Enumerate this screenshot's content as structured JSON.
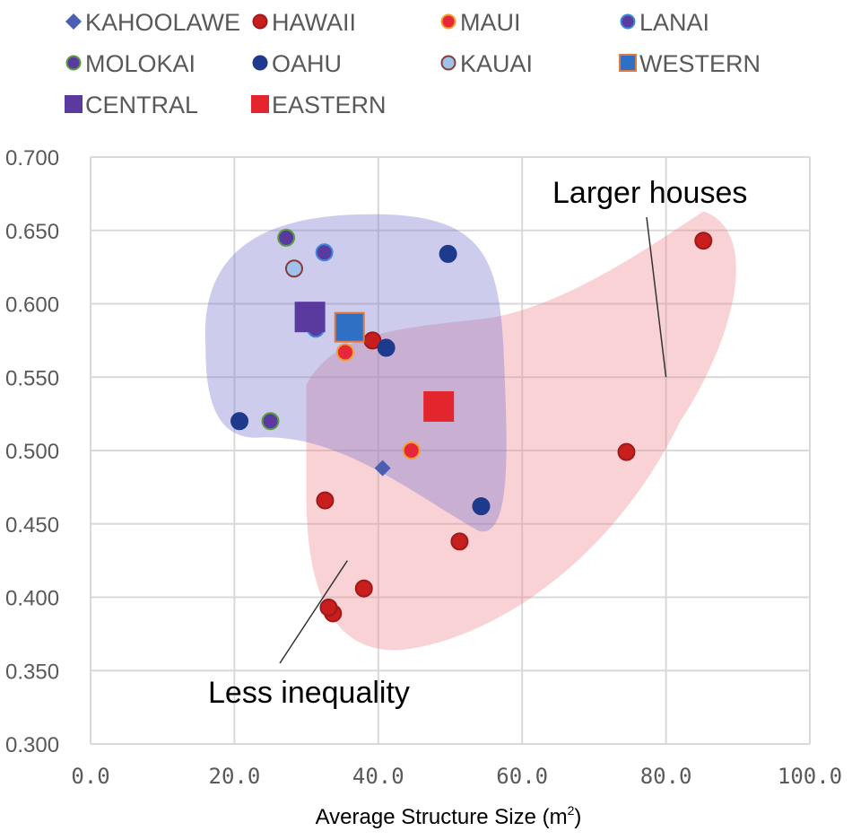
{
  "chart_data": {
    "type": "scatter",
    "title": "",
    "xlabel": "Average Structure Size (m²)",
    "xlabel_base": "Average Structure Size (m",
    "xlabel_sup": "2",
    "xlabel_end": ")",
    "ylabel": "",
    "xlim": [
      0,
      100
    ],
    "ylim": [
      0.3,
      0.7
    ],
    "x_ticks": [
      "0.0",
      "20.0",
      "40.0",
      "60.0",
      "80.0",
      "100.0"
    ],
    "x_tick_values": [
      0,
      20,
      40,
      60,
      80,
      100
    ],
    "y_ticks": [
      "0.700",
      "0.650",
      "0.600",
      "0.550",
      "0.500",
      "0.450",
      "0.400",
      "0.350",
      "0.300"
    ],
    "y_tick_values": [
      0.7,
      0.65,
      0.6,
      0.55,
      0.5,
      0.45,
      0.4,
      0.35,
      0.3
    ],
    "grid": true,
    "legend_position": "top",
    "series": [
      {
        "name": "KAHOOLAWE",
        "marker": "diamond",
        "fill": "#4a5fb4",
        "stroke": "#4a5fb4",
        "size": "small",
        "points": [
          [
            40.6,
            0.488
          ]
        ]
      },
      {
        "name": "HAWAII",
        "marker": "circle",
        "fill": "#c81e1e",
        "stroke": "#9e1a1a",
        "size": "small",
        "points": [
          [
            85.2,
            0.643
          ],
          [
            74.5,
            0.499
          ],
          [
            51.3,
            0.438
          ],
          [
            32.6,
            0.466
          ],
          [
            38.0,
            0.406
          ],
          [
            33.7,
            0.389
          ],
          [
            33.1,
            0.393
          ],
          [
            39.2,
            0.575
          ]
        ]
      },
      {
        "name": "MAUI",
        "marker": "circle",
        "fill": "#e8263a",
        "stroke": "#f0a030",
        "size": "small",
        "points": [
          [
            44.6,
            0.5
          ],
          [
            35.4,
            0.567
          ]
        ]
      },
      {
        "name": "LANAI",
        "marker": "circle",
        "fill": "#5a3a9e",
        "stroke": "#3f8ad8",
        "size": "small",
        "points": [
          [
            32.5,
            0.635
          ],
          [
            31.3,
            0.583
          ]
        ]
      },
      {
        "name": "MOLOKAI",
        "marker": "circle",
        "fill": "#5a3a9e",
        "stroke": "#5aa040",
        "size": "small",
        "points": [
          [
            27.2,
            0.645
          ],
          [
            25.0,
            0.52
          ]
        ]
      },
      {
        "name": "OAHU",
        "marker": "circle",
        "fill": "#1e3a8c",
        "stroke": "#1e3a8c",
        "size": "small",
        "points": [
          [
            49.7,
            0.634
          ],
          [
            20.7,
            0.52
          ],
          [
            41.1,
            0.57
          ],
          [
            54.3,
            0.462
          ]
        ]
      },
      {
        "name": "KAUAI",
        "marker": "circle",
        "fill": "#9ec2ea",
        "stroke": "#8a3a3a",
        "size": "small",
        "points": [
          [
            28.3,
            0.624
          ]
        ]
      },
      {
        "name": "WESTERN",
        "marker": "square",
        "fill": "#2f6fc4",
        "stroke": "#e07a40",
        "size": "large",
        "points": [
          [
            36.0,
            0.584
          ]
        ]
      },
      {
        "name": "CENTRAL",
        "marker": "square",
        "fill": "#5a3a9e",
        "stroke": "#5a3a9e",
        "size": "large",
        "points": [
          [
            30.5,
            0.591
          ]
        ]
      },
      {
        "name": "EASTERN",
        "marker": "square",
        "fill": "#e3262e",
        "stroke": "#e3262e",
        "size": "large",
        "points": [
          [
            48.4,
            0.53
          ]
        ]
      }
    ],
    "regions": [
      {
        "name": "eastern-region",
        "fill": "#f08890",
        "opacity": 0.38
      },
      {
        "name": "western-central-region",
        "fill": "#7b7ad0",
        "opacity": 0.38
      }
    ],
    "annotations": [
      {
        "text": "Larger houses",
        "target": [
          80.0,
          0.55
        ]
      },
      {
        "text": "Less inequality",
        "target": [
          35.7,
          0.425
        ]
      }
    ]
  }
}
